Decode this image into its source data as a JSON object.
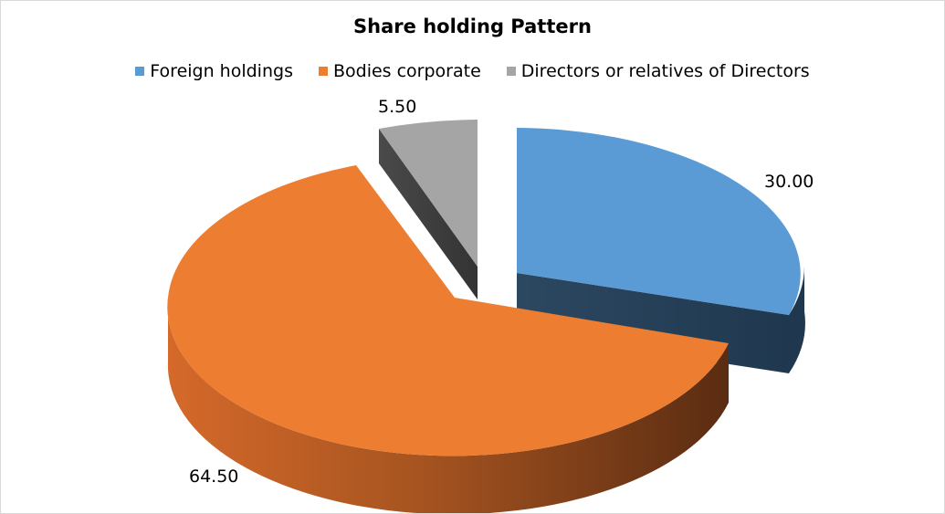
{
  "chart_data": {
    "type": "pie",
    "title": "Share holding Pattern",
    "categories": [
      "Foreign holdings",
      "Bodies corporate",
      "Directors or relatives of Directors"
    ],
    "values": [
      30.0,
      64.5,
      5.5
    ],
    "value_labels": [
      "30.00",
      "64.50",
      "5.50"
    ],
    "colors": [
      "#5b9bd5",
      "#ed7d31",
      "#a5a5a5"
    ],
    "style": "3d-exploded",
    "legend_position": "top"
  }
}
